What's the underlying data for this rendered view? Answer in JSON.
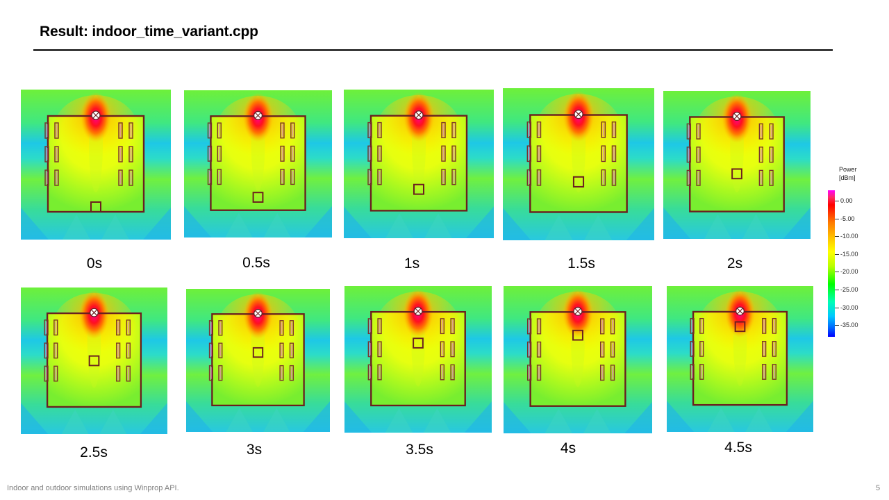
{
  "slide": {
    "title": "Result: indoor_time_variant.cpp",
    "footer": "Indoor and outdoor simulations using Winprop API.",
    "page_number": "5"
  },
  "panels": [
    {
      "label": "0s",
      "receiver_progress": 0.0
    },
    {
      "label": "0.5s",
      "receiver_progress": 0.11
    },
    {
      "label": "1s",
      "receiver_progress": 0.22
    },
    {
      "label": "1.5s",
      "receiver_progress": 0.33
    },
    {
      "label": "2s",
      "receiver_progress": 0.44
    },
    {
      "label": "2.5s",
      "receiver_progress": 0.56
    },
    {
      "label": "3s",
      "receiver_progress": 0.67
    },
    {
      "label": "3.5s",
      "receiver_progress": 0.78
    },
    {
      "label": "4s",
      "receiver_progress": 0.89
    },
    {
      "label": "4.5s",
      "receiver_progress": 1.0
    }
  ],
  "legend": {
    "title_line1": "Power",
    "title_line2": "[dBm]",
    "values": [
      "0.00",
      "-5.00",
      "-10.00",
      "-15.00",
      "-20.00",
      "-25.00",
      "-30.00",
      "-35.00"
    ],
    "colors": {
      "max": "#ff00ff",
      "high": "#ff0000",
      "mid_high": "#ffff00",
      "mid": "#00ff00",
      "low": "#00c8ff",
      "min": "#0000ff"
    }
  }
}
